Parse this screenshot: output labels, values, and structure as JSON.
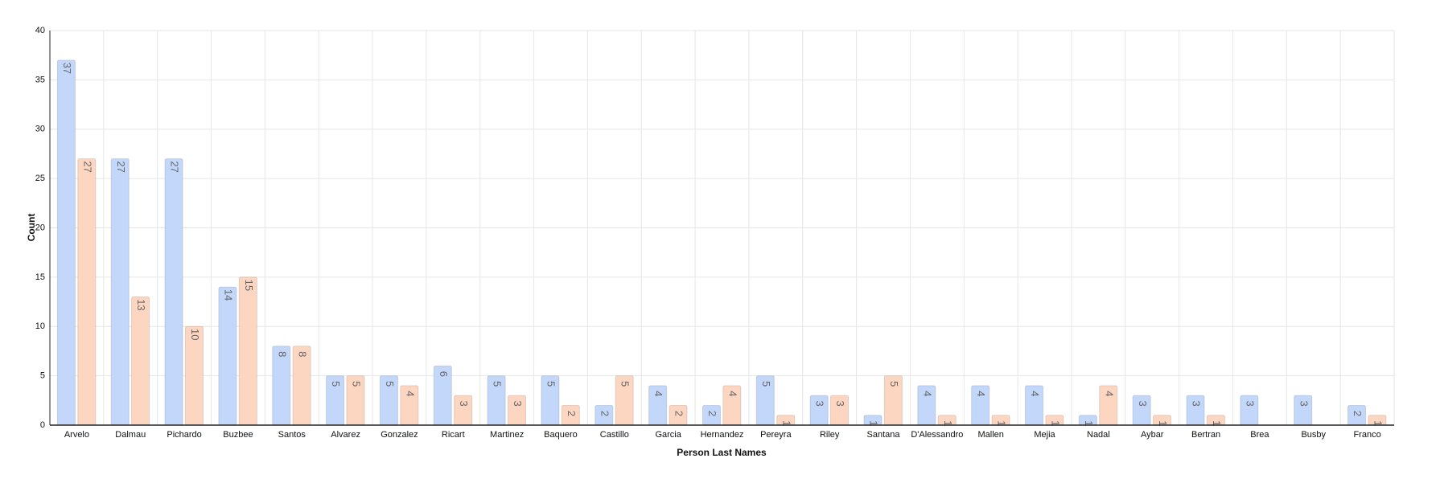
{
  "chart_data": {
    "type": "bar",
    "x_label": "Person Last Names",
    "y_label": "Count",
    "categories": [
      "Arvelo",
      "Dalmau",
      "Pichardo",
      "Buzbee",
      "Santos",
      "Alvarez",
      "Gonzalez",
      "Ricart",
      "Martinez",
      "Baquero",
      "Castillo",
      "Garcia",
      "Hernandez",
      "Pereyra",
      "Riley",
      "Santana",
      "D'Alessandro",
      "Mallen",
      "Mejia",
      "Nadal",
      "Aybar",
      "Bertran",
      "Brea",
      "Busby",
      "Franco"
    ],
    "series": [
      {
        "color": "#c3d7fb",
        "values": [
          37,
          27,
          27,
          14,
          8,
          5,
          5,
          6,
          5,
          5,
          2,
          4,
          2,
          5,
          3,
          1,
          4,
          4,
          4,
          1,
          3,
          3,
          3,
          3,
          2
        ]
      },
      {
        "color": "#fdd6c2",
        "values": [
          27,
          13,
          10,
          15,
          8,
          5,
          4,
          3,
          3,
          2,
          5,
          2,
          4,
          1,
          3,
          5,
          1,
          1,
          1,
          4,
          1,
          1,
          null,
          null,
          1
        ]
      }
    ],
    "ylim": [
      0,
      40
    ],
    "yticks": [
      0,
      5,
      10,
      15,
      20,
      25,
      30,
      35,
      40
    ],
    "grid": true
  }
}
